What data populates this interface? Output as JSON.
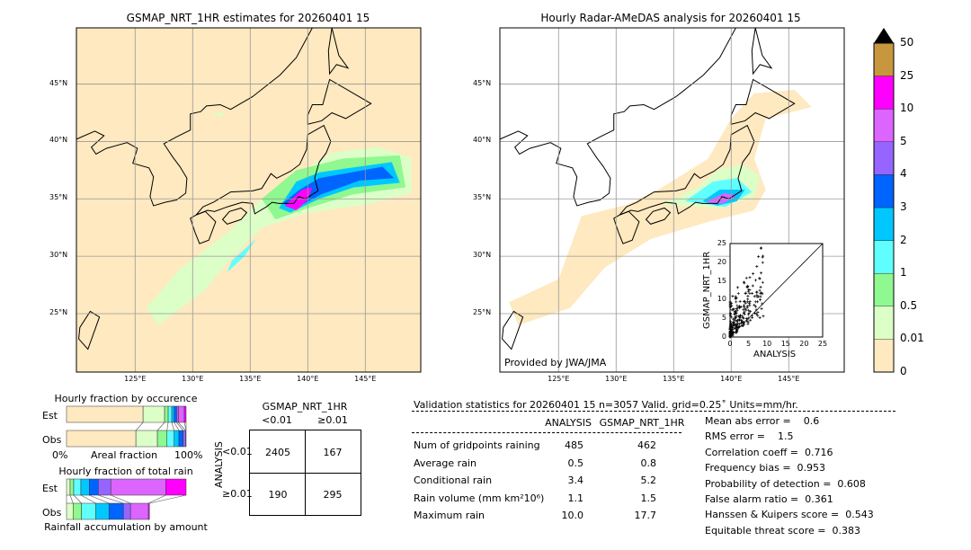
{
  "left_map": {
    "title": "GSMAP_NRT_1HR estimates for 20260401 15"
  },
  "right_map": {
    "title": "Hourly Radar-AMeDAS analysis for 20260401 15",
    "credit": "Provided by JWA/JMA"
  },
  "lon_ticks": [
    "125°E",
    "130°E",
    "135°E",
    "140°E",
    "145°E"
  ],
  "lat_ticks": [
    "45°N",
    "40°N",
    "35°N",
    "30°N",
    "25°N"
  ],
  "colorbar": {
    "labels": [
      "0",
      "0.01",
      "0.5",
      "1",
      "2",
      "3",
      "4",
      "5",
      "10",
      "25",
      "50"
    ],
    "colors": [
      "#fee9c0",
      "#dcffc8",
      "#90f890",
      "#60ffff",
      "#00c8ff",
      "#0064ff",
      "#9664ff",
      "#dc64ff",
      "#ff00ff",
      "#c8963c"
    ],
    "extend_color": "#000000"
  },
  "scatter": {
    "xlabel": "ANALYSIS",
    "ylabel": "GSMAP_NRT_1HR",
    "ticks": [
      "0",
      "5",
      "10",
      "15",
      "20",
      "25"
    ]
  },
  "occurrence": {
    "title": "Hourly fraction by occurence",
    "est_label": "Est",
    "obs_label": "Obs",
    "xlabel": "Areal fraction",
    "x_min_label": "0%",
    "x_max_label": "100%",
    "est": [
      0.64,
      0.18,
      0.03,
      0.03,
      0.02,
      0.02,
      0.015,
      0.05,
      0.015
    ],
    "obs": [
      0.58,
      0.18,
      0.08,
      0.06,
      0.04,
      0.035,
      0.02,
      0.005,
      0
    ]
  },
  "rain_fraction": {
    "title": "Hourly fraction of total rain",
    "est_label": "Est",
    "obs_label": "Obs",
    "xlabel": "Rainfall accumulation by amount",
    "est": [
      0,
      0.03,
      0.03,
      0.06,
      0.07,
      0.075,
      0.105,
      0.46,
      0.17
    ],
    "obs": [
      0,
      0.055,
      0.07,
      0.12,
      0.11,
      0.12,
      0.06,
      0.15,
      0.008
    ]
  },
  "contingency": {
    "title": "GSMAP_NRT_1HR",
    "col1": "<0.01",
    "col2": "≥0.01",
    "row_axis": "ANALYSIS",
    "row1": "<0.01",
    "row2": "≥0.01",
    "cells": [
      "2405",
      "167",
      "190",
      "295"
    ]
  },
  "stats": {
    "header": "Validation statistics for 20260401 15  n=3057 Valid. grid=0.25˚ Units=mm/hr.",
    "col_analysis": "ANALYSIS",
    "col_gsmap": "GSMAP_NRT_1HR",
    "rows": [
      {
        "label": "Num of gridpoints raining",
        "a": "485",
        "g": "462"
      },
      {
        "label": "Average rain",
        "a": "0.5",
        "g": "0.8"
      },
      {
        "label": "Conditional rain",
        "a": "3.4",
        "g": "5.2"
      },
      {
        "label": "Rain volume (mm km²10⁶)",
        "a": "1.1",
        "g": "1.5"
      },
      {
        "label": "Maximum rain",
        "a": "10.0",
        "g": "17.7"
      }
    ],
    "scores": [
      "Mean abs error =    0.6",
      "RMS error =    1.5",
      "Correlation coeff =  0.716",
      "Frequency bias =  0.953",
      "Probability of detection =  0.608",
      "False alarm ratio =  0.361",
      "Hanssen & Kuipers score =  0.543",
      "Equitable threat score =  0.383"
    ]
  }
}
